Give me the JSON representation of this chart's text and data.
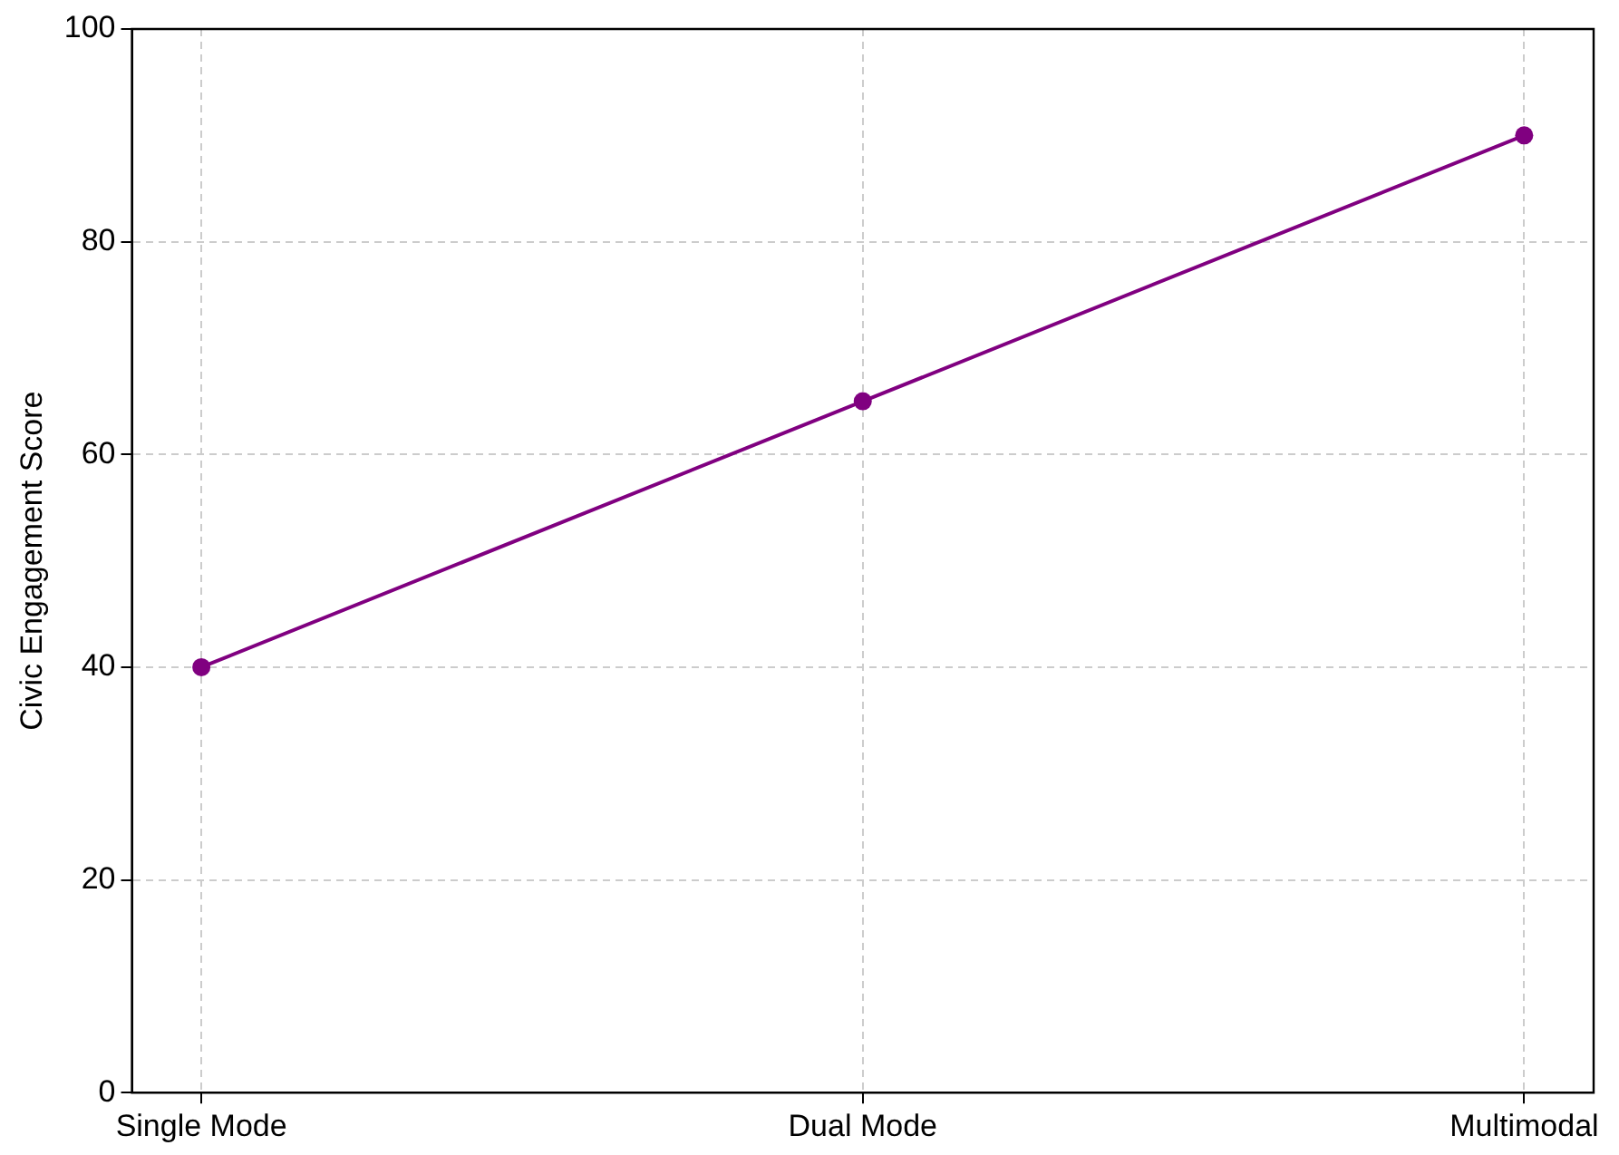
{
  "chart_data": {
    "type": "line",
    "ylabel": "Civic Engagement Score",
    "categories": [
      "Single Mode",
      "Dual Mode",
      "Multimodal"
    ],
    "series": [
      {
        "color": "#800080",
        "values": [
          40,
          65,
          90
        ]
      }
    ],
    "ylim": [
      0,
      100
    ],
    "yticks": [
      0,
      20,
      40,
      60,
      80,
      100
    ],
    "grid": true,
    "marker": "circle",
    "line_style": "solid",
    "legend": false
  }
}
